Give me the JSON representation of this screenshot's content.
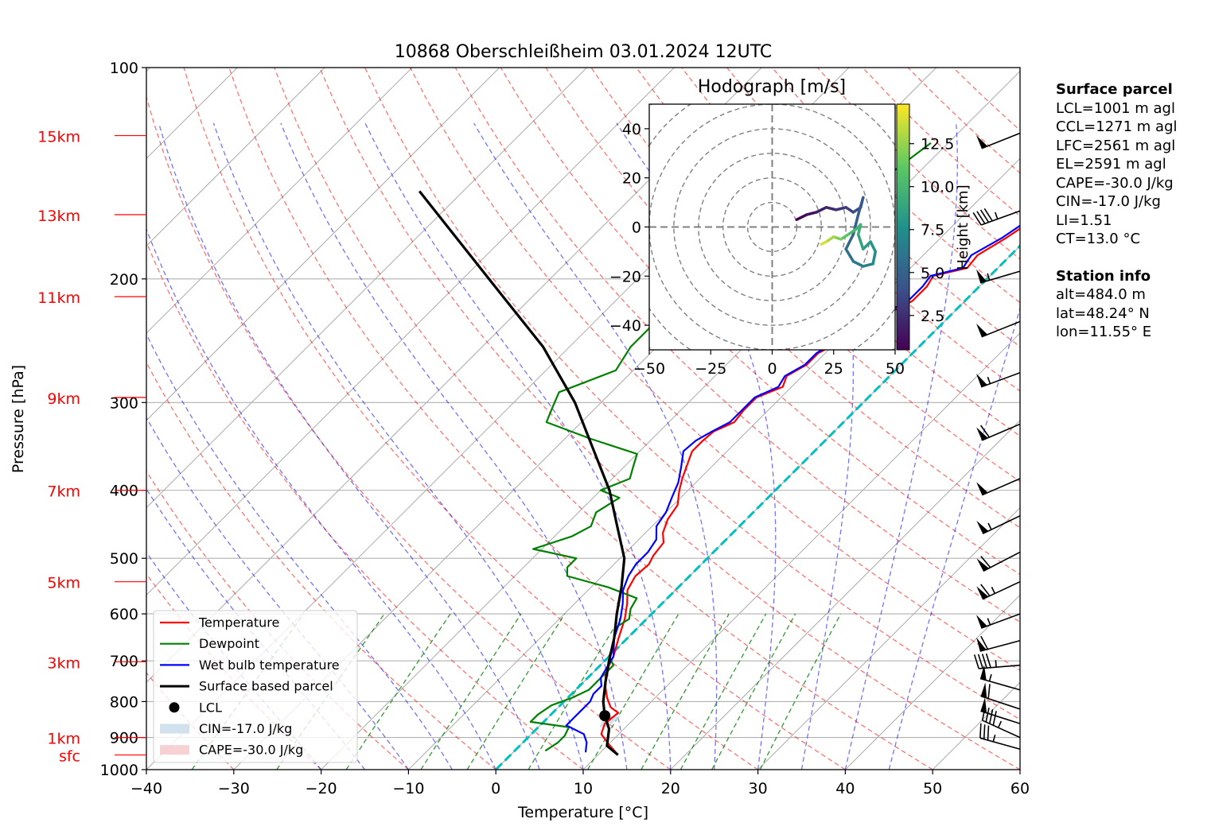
{
  "colors": {
    "temperature": "#ff0000",
    "dewpoint": "#008000",
    "wetbulb": "#0000ff",
    "parcel": "#000000",
    "dry_adiabat": "#ff0000",
    "moist_adiabat": "#0000ff",
    "mixing_ratio": "#008000",
    "isotherm": "#808080",
    "zero_isotherm": "#00bfbf",
    "height_marker": "#ff0000",
    "cin_fill": "#c5d9ea",
    "cape_fill": "#f5c6c8"
  },
  "chart_data": [
    {
      "type": "line",
      "subtype": "skew-t log-p",
      "title": "10868 Oberschleißheim 03.01.2024 12UTC",
      "xlabel": "Temperature [°C]",
      "ylabel": "Pressure [hPa]",
      "xlim": [
        -40,
        60
      ],
      "ylim": [
        1000,
        100
      ],
      "y_scale": "log",
      "x_ticks": [
        -40,
        -30,
        -20,
        -10,
        0,
        10,
        20,
        30,
        40,
        50,
        60
      ],
      "x_tick_labels": [
        "−40",
        "−30",
        "−20",
        "−10",
        "0",
        "10",
        "20",
        "30",
        "40",
        "50",
        "60"
      ],
      "y_ticks": [
        1000,
        900,
        800,
        700,
        600,
        500,
        400,
        300,
        200,
        100
      ],
      "y_tick_labels": [
        "1000",
        "900",
        "800",
        "700",
        "600",
        "500",
        "400",
        "300",
        "200",
        "100"
      ],
      "grid": true,
      "height_markers": [
        {
          "label": "15km",
          "p": 125
        },
        {
          "label": "13km",
          "p": 162
        },
        {
          "label": "11km",
          "p": 212
        },
        {
          "label": "9km",
          "p": 295
        },
        {
          "label": "7km",
          "p": 400
        },
        {
          "label": "5km",
          "p": 540
        },
        {
          "label": "3km",
          "p": 702
        },
        {
          "label": "1km",
          "p": 900
        },
        {
          "label": "sfc",
          "p": 953
        }
      ],
      "legend_position": "lower-left",
      "legend": [
        {
          "label": "Temperature",
          "kind": "line",
          "color": "#ff0000"
        },
        {
          "label": "Dewpoint",
          "kind": "line",
          "color": "#008000"
        },
        {
          "label": "Wet bulb temperature",
          "kind": "line",
          "color": "#0000ff"
        },
        {
          "label": "Surface based parcel",
          "kind": "line",
          "color": "#000000"
        },
        {
          "label": "LCL",
          "kind": "dot",
          "color": "#000000"
        },
        {
          "label": "CIN=-17.0 J/kg",
          "kind": "patch",
          "color": "#c5d9ea"
        },
        {
          "label": "CAPE=-30.0 J/kg",
          "kind": "patch",
          "color": "#f5c6c8"
        }
      ],
      "lcl": {
        "t": 6.3,
        "p": 838
      },
      "series": [
        {
          "name": "Temperature",
          "points": [
            [
              12.3,
              953
            ],
            [
              10,
              920
            ],
            [
              8,
              890
            ],
            [
              7.2,
              860
            ],
            [
              7.5,
              830
            ],
            [
              6,
              815
            ],
            [
              4.5,
              790
            ],
            [
              3.2,
              765
            ],
            [
              1.8,
              735
            ],
            [
              1,
              710
            ],
            [
              0.5,
              690
            ],
            [
              -1,
              650
            ],
            [
              -2.5,
              610
            ],
            [
              -4,
              580
            ],
            [
              -5.5,
              555
            ],
            [
              -6.2,
              530
            ],
            [
              -6,
              510
            ],
            [
              -6.5,
              495
            ],
            [
              -6.8,
              475
            ],
            [
              -8,
              460
            ],
            [
              -9,
              440
            ],
            [
              -9.5,
              420
            ],
            [
              -11,
              400
            ],
            [
              -12,
              385
            ],
            [
              -13.2,
              365
            ],
            [
              -14,
              352
            ],
            [
              -14,
              340
            ],
            [
              -13.8,
              330
            ],
            [
              -12.5,
              320
            ],
            [
              -12.8,
              308
            ],
            [
              -12.8,
              295
            ],
            [
              -11,
              285
            ],
            [
              -11.8,
              275
            ],
            [
              -10.8,
              265
            ],
            [
              -10.8,
              255
            ],
            [
              -9.5,
              245
            ],
            [
              -8,
              235
            ],
            [
              -7.5,
              225
            ],
            [
              -6,
              215
            ],
            [
              -6,
              205
            ],
            [
              -6.5,
              198
            ],
            [
              -3.5,
              193
            ],
            [
              -3.8,
              185
            ],
            [
              -2.5,
              175
            ],
            [
              -1.5,
              165
            ],
            [
              0.5,
              155
            ],
            [
              3.5,
              145
            ],
            [
              4.8,
              140
            ],
            [
              4.2,
              133
            ],
            [
              4.2,
              128
            ],
            [
              4.5,
              124
            ]
          ]
        },
        {
          "name": "Dewpoint",
          "points": [
            [
              3.5,
              940
            ],
            [
              4,
              915
            ],
            [
              4,
              895
            ],
            [
              3.5,
              870
            ],
            [
              -1.5,
              855
            ],
            [
              -1.5,
              835
            ],
            [
              -1,
              810
            ],
            [
              0.5,
              790
            ],
            [
              1.5,
              770
            ],
            [
              1.5,
              750
            ],
            [
              1.5,
              730
            ],
            [
              1.5,
              710
            ],
            [
              0,
              690
            ],
            [
              -1,
              660
            ],
            [
              -2,
              640
            ],
            [
              -2.5,
              625
            ],
            [
              -2,
              610
            ],
            [
              -3,
              590
            ],
            [
              -3.5,
              570
            ],
            [
              -8,
              550
            ],
            [
              -14,
              530
            ],
            [
              -15,
              515
            ],
            [
              -15,
              500
            ],
            [
              -21,
              485
            ],
            [
              -18,
              465
            ],
            [
              -17,
              450
            ],
            [
              -18,
              430
            ],
            [
              -17,
              410
            ],
            [
              -20,
              400
            ],
            [
              -18,
              385
            ],
            [
              -19,
              370
            ],
            [
              -20,
              355
            ],
            [
              -27,
              338
            ],
            [
              -34,
              320
            ],
            [
              -35,
              305
            ],
            [
              -36,
              290
            ],
            [
              -32,
              270
            ],
            [
              -33,
              250
            ],
            [
              -33,
              225
            ],
            [
              -31,
              200
            ],
            [
              -30,
              185
            ],
            [
              -29,
              170
            ],
            [
              -26,
              155
            ],
            [
              -23,
              140
            ],
            [
              -22,
              128
            ]
          ]
        },
        {
          "name": "Wet bulb temperature",
          "points": [
            [
              8.3,
              945
            ],
            [
              7.3,
              915
            ],
            [
              6,
              890
            ],
            [
              3,
              865
            ],
            [
              3,
              845
            ],
            [
              3,
              825
            ],
            [
              3,
              800
            ],
            [
              2.5,
              780
            ],
            [
              2.5,
              760
            ],
            [
              1.5,
              740
            ],
            [
              1,
              715
            ],
            [
              0.5,
              690
            ],
            [
              -1.5,
              650
            ],
            [
              -3,
              610
            ],
            [
              -4.5,
              580
            ],
            [
              -6,
              555
            ],
            [
              -7,
              530
            ],
            [
              -7.5,
              510
            ],
            [
              -7.5,
              490
            ],
            [
              -8,
              470
            ],
            [
              -9.5,
              450
            ],
            [
              -10,
              430
            ],
            [
              -11,
              410
            ],
            [
              -12,
              390
            ],
            [
              -13.5,
              370
            ],
            [
              -15,
              352
            ],
            [
              -14.8,
              340
            ],
            [
              -14,
              330
            ],
            [
              -13,
              320
            ],
            [
              -13,
              308
            ],
            [
              -13,
              295
            ],
            [
              -11.5,
              285
            ],
            [
              -12,
              275
            ],
            [
              -11,
              265
            ],
            [
              -11,
              255
            ],
            [
              -10,
              245
            ],
            [
              -8.5,
              235
            ],
            [
              -8,
              225
            ],
            [
              -6.5,
              215
            ],
            [
              -6.5,
              205
            ],
            [
              -6.8,
              198
            ],
            [
              -4,
              193
            ],
            [
              -4.5,
              185
            ],
            [
              -3,
              175
            ],
            [
              -2,
              165
            ],
            [
              0,
              155
            ],
            [
              3,
              145
            ],
            [
              3.8,
              140
            ],
            [
              3.5,
              133
            ],
            [
              3.8,
              128
            ],
            [
              4.2,
              124
            ]
          ]
        },
        {
          "name": "Surface based parcel",
          "points": [
            [
              12.3,
              953
            ],
            [
              10,
              925
            ],
            [
              8.3,
              875
            ],
            [
              6.3,
              838
            ],
            [
              4.5,
              800
            ],
            [
              2.5,
              750
            ],
            [
              0.5,
              700
            ],
            [
              -1.5,
              650
            ],
            [
              -4,
              600
            ],
            [
              -6.5,
              550
            ],
            [
              -9.5,
              500
            ],
            [
              -14,
              450
            ],
            [
              -19,
              400
            ],
            [
              -25.5,
              350
            ],
            [
              -33,
              300
            ],
            [
              -43,
              250
            ],
            [
              -57,
              200
            ],
            [
              -75,
              150
            ]
          ]
        }
      ]
    },
    {
      "type": "line",
      "subtype": "hodograph",
      "title": "Hodograph [m/s]",
      "xlim": [
        -50,
        50
      ],
      "ylim": [
        -50,
        50
      ],
      "x_ticks": [
        -50,
        -25,
        0,
        25,
        50
      ],
      "x_tick_labels": [
        "−50",
        "−25",
        "0",
        "25",
        "50"
      ],
      "y_ticks": [
        40,
        20,
        0,
        -20,
        -40
      ],
      "y_tick_labels": [
        "40",
        "20",
        "0",
        "−20",
        "−40"
      ],
      "colorbar": {
        "label": "Height [km]",
        "colormap": "viridis",
        "range": [
          0.5,
          14.8
        ],
        "ticks": [
          2.5,
          5.0,
          7.5,
          10.0,
          12.5
        ],
        "tick_labels": [
          "2.5",
          "5.0",
          "7.5",
          "10.0",
          "12.5"
        ]
      },
      "trace": [
        {
          "u": 10,
          "v": 3,
          "h": 0.5
        },
        {
          "u": 14,
          "v": 5,
          "h": 1.0
        },
        {
          "u": 18,
          "v": 6,
          "h": 1.5
        },
        {
          "u": 22,
          "v": 8,
          "h": 2.0
        },
        {
          "u": 26,
          "v": 7,
          "h": 2.5
        },
        {
          "u": 30,
          "v": 8,
          "h": 3.0
        },
        {
          "u": 33,
          "v": 6,
          "h": 3.5
        },
        {
          "u": 36,
          "v": 8,
          "h": 4.0
        },
        {
          "u": 37,
          "v": 12,
          "h": 4.3
        },
        {
          "u": 35,
          "v": 5,
          "h": 4.7
        },
        {
          "u": 33,
          "v": -3,
          "h": 5.0
        },
        {
          "u": 30,
          "v": -9,
          "h": 5.5
        },
        {
          "u": 33,
          "v": -14,
          "h": 6.0
        },
        {
          "u": 37,
          "v": -16,
          "h": 6.5
        },
        {
          "u": 41,
          "v": -15,
          "h": 7.0
        },
        {
          "u": 42,
          "v": -10,
          "h": 7.5
        },
        {
          "u": 40,
          "v": -6,
          "h": 8.0
        },
        {
          "u": 37,
          "v": -9,
          "h": 8.5
        },
        {
          "u": 35,
          "v": -3,
          "h": 9.0
        },
        {
          "u": 36,
          "v": 1,
          "h": 9.5
        },
        {
          "u": 34,
          "v": -1,
          "h": 10.0
        },
        {
          "u": 31,
          "v": -3,
          "h": 10.5
        },
        {
          "u": 28,
          "v": -5,
          "h": 11.5
        },
        {
          "u": 25,
          "v": -4,
          "h": 12.5
        },
        {
          "u": 22,
          "v": -6,
          "h": 13.5
        },
        {
          "u": 20,
          "v": -7,
          "h": 14.5
        }
      ]
    }
  ],
  "wind_barbs": [
    {
      "p": 124,
      "u": 25,
      "v": 10
    },
    {
      "p": 160,
      "u": 22,
      "v": 8
    },
    {
      "p": 195,
      "u": 27,
      "v": 8
    },
    {
      "p": 230,
      "u": 25,
      "v": 10
    },
    {
      "p": 272,
      "u": 27,
      "v": 10
    },
    {
      "p": 322,
      "u": 28,
      "v": 12
    },
    {
      "p": 385,
      "u": 23,
      "v": 10
    },
    {
      "p": 435,
      "u": 25,
      "v": 12
    },
    {
      "p": 490,
      "u": 27,
      "v": 14
    },
    {
      "p": 540,
      "u": 30,
      "v": 14
    },
    {
      "p": 600,
      "u": 27,
      "v": 10
    },
    {
      "p": 655,
      "u": 30,
      "v": 8
    },
    {
      "p": 710,
      "u": 24,
      "v": 2
    },
    {
      "p": 770,
      "u": 28,
      "v": -8
    },
    {
      "p": 820,
      "u": 30,
      "v": -10
    },
    {
      "p": 860,
      "u": 25,
      "v": -8
    },
    {
      "p": 900,
      "u": 22,
      "v": -10
    },
    {
      "p": 935,
      "u": 18,
      "v": -5
    }
  ],
  "sidebar": {
    "surface": {
      "heading": "Surface parcel",
      "lines": [
        "LCL=1001 m agl",
        "CCL=1271 m agl",
        "LFC=2561 m agl",
        "EL=2591 m agl",
        "CAPE=-30.0 J/kg",
        "CIN=-17.0 J/kg",
        "LI=1.51",
        "CT=13.0 °C"
      ]
    },
    "station": {
      "heading": "Station info",
      "lines": [
        "alt=484.0 m",
        "lat=48.24° N",
        "lon=11.55° E"
      ]
    }
  }
}
